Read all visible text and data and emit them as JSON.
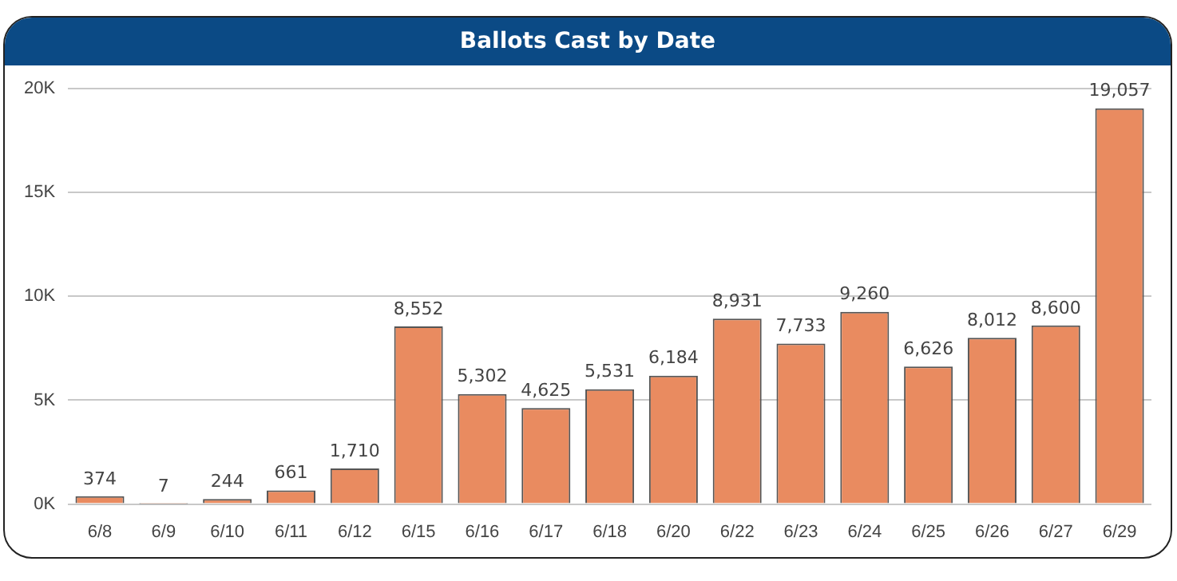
{
  "chart_data": {
    "type": "bar",
    "title": "Ballots Cast by Date",
    "categories": [
      "6/8",
      "6/9",
      "6/10",
      "6/11",
      "6/12",
      "6/15",
      "6/16",
      "6/17",
      "6/18",
      "6/20",
      "6/22",
      "6/23",
      "6/24",
      "6/25",
      "6/26",
      "6/27",
      "6/29"
    ],
    "values": [
      374,
      7,
      244,
      661,
      1710,
      8552,
      5302,
      4625,
      5531,
      6184,
      8931,
      7733,
      9260,
      6626,
      8012,
      8600,
      19057
    ],
    "value_labels": [
      "374",
      "7",
      "244",
      "661",
      "1,710",
      "8,552",
      "5,302",
      "4,625",
      "5,531",
      "6,184",
      "8,931",
      "7,733",
      "9,260",
      "6,626",
      "8,012",
      "8,600",
      "19,057"
    ],
    "color": "#e98b60",
    "ylim": [
      0,
      20000
    ],
    "yticks": [
      {
        "value": 0,
        "label": "0K"
      },
      {
        "value": 5000,
        "label": "5K"
      },
      {
        "value": 10000,
        "label": "10K"
      },
      {
        "value": 15000,
        "label": "15K"
      },
      {
        "value": 20000,
        "label": "20K"
      }
    ],
    "grid": "y",
    "legend": false
  }
}
